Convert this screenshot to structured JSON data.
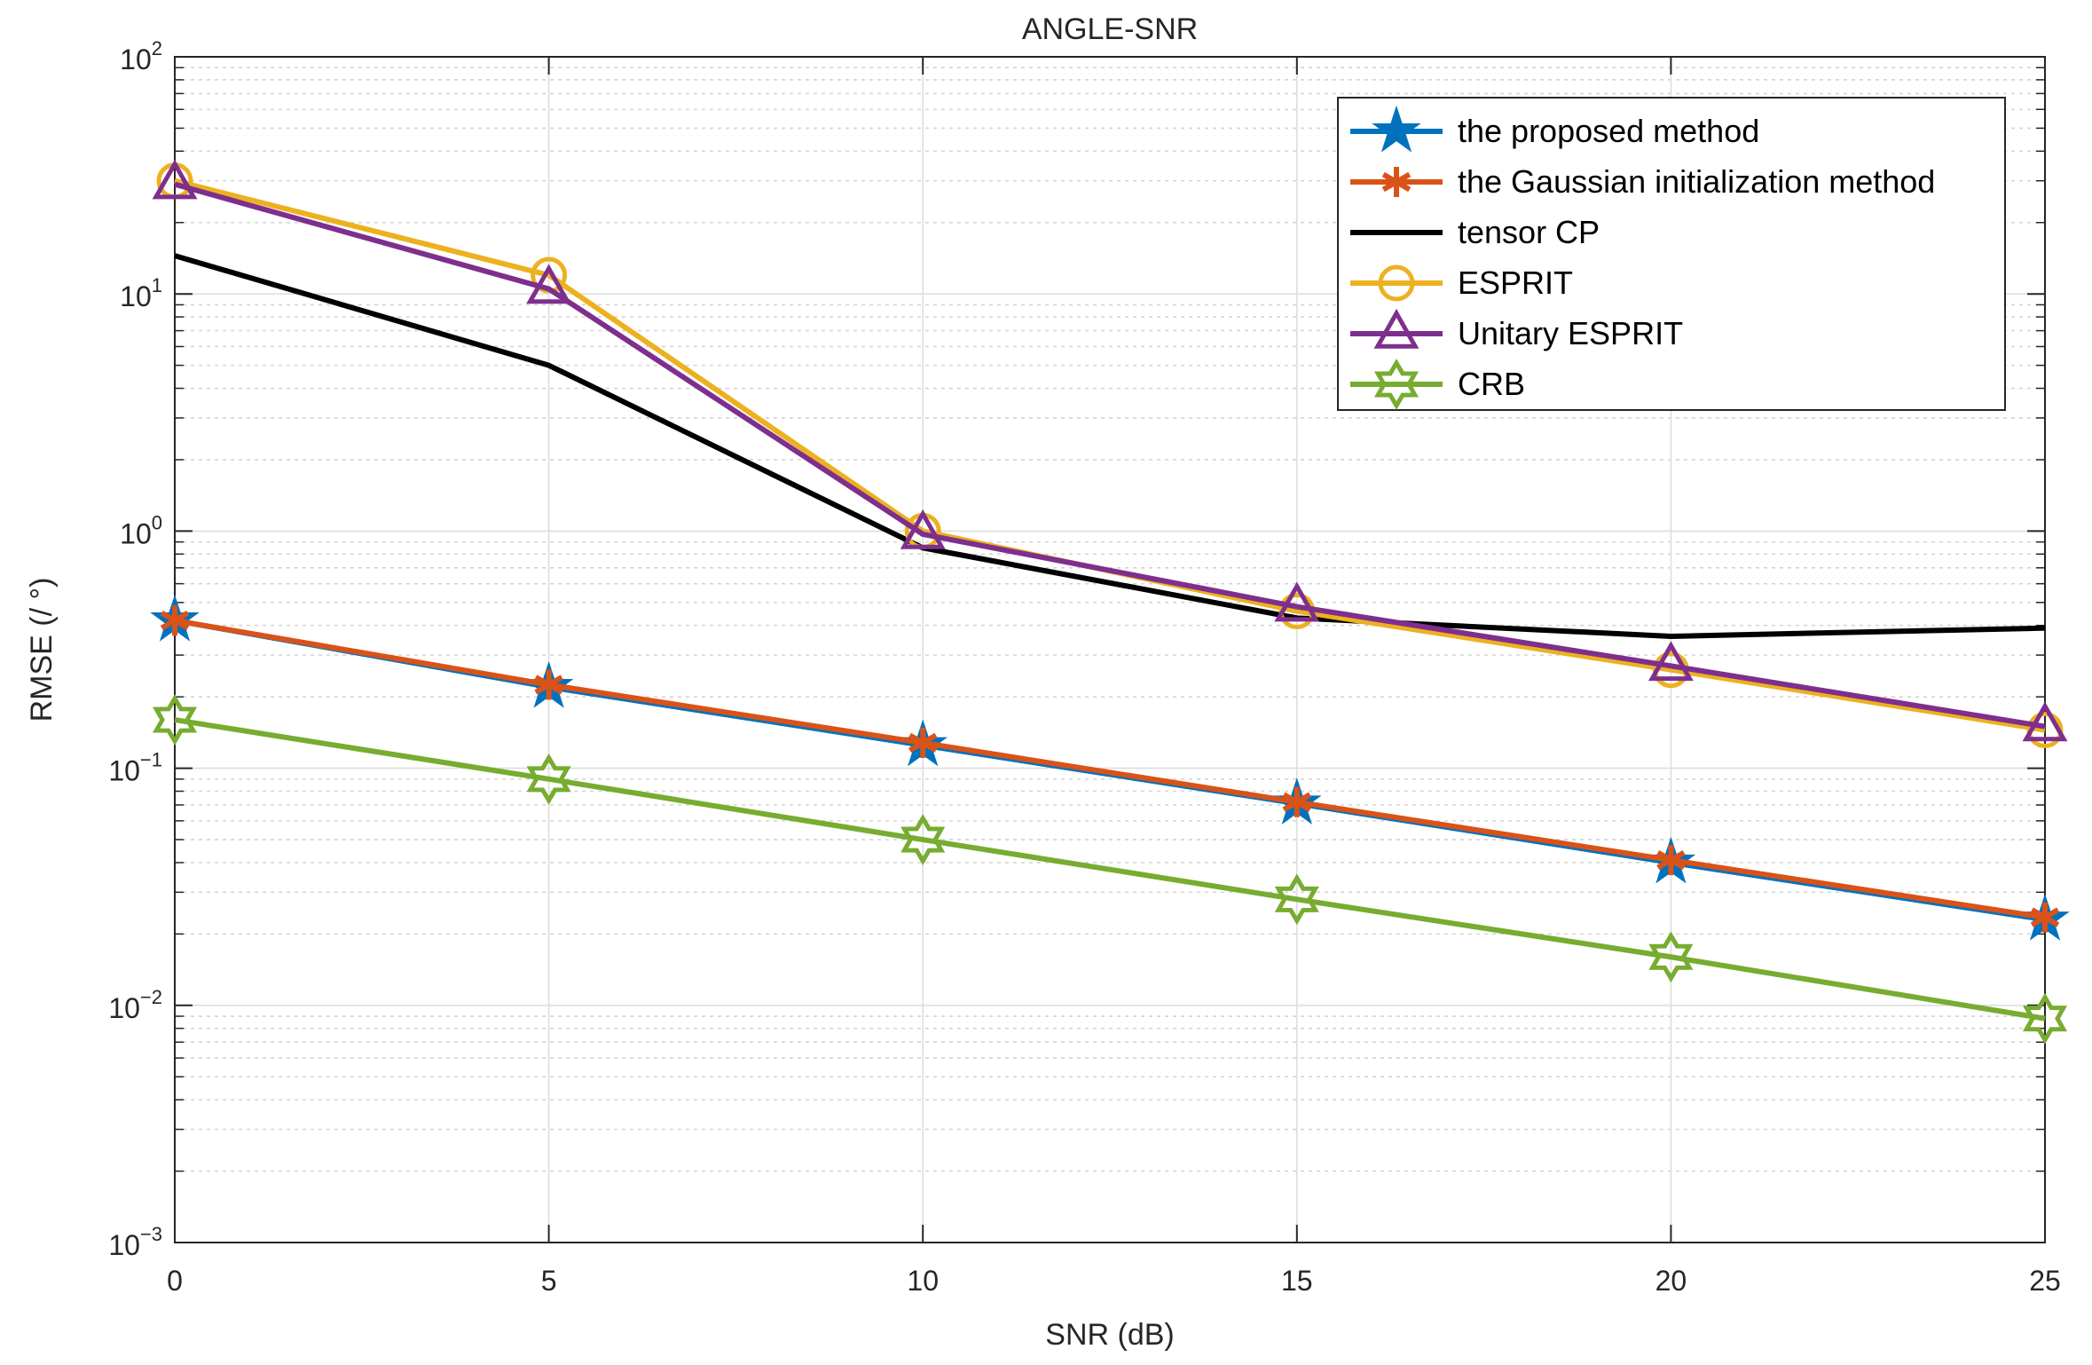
{
  "chart_data": {
    "type": "line",
    "title": "ANGLE-SNR",
    "xlabel": "SNR (dB)",
    "ylabel": "RMSE (/ °)",
    "yscale": "log",
    "xlim": [
      0,
      25
    ],
    "ylim": [
      0.001,
      100
    ],
    "grid": true,
    "legend_position": "top-right",
    "x": [
      0,
      5,
      10,
      15,
      20,
      25
    ],
    "x_ticks": [
      {
        "value": 0,
        "label": "0"
      },
      {
        "value": 5,
        "label": "5"
      },
      {
        "value": 10,
        "label": "10"
      },
      {
        "value": 15,
        "label": "15"
      },
      {
        "value": 20,
        "label": "20"
      },
      {
        "value": 25,
        "label": "25"
      }
    ],
    "y_ticks": [
      {
        "value": 100,
        "base": "10",
        "exp": "2"
      },
      {
        "value": 10,
        "base": "10",
        "exp": "1"
      },
      {
        "value": 1,
        "base": "10",
        "exp": "0"
      },
      {
        "value": 0.1,
        "base": "10",
        "exp": "−1"
      },
      {
        "value": 0.01,
        "base": "10",
        "exp": "−2"
      },
      {
        "value": 0.001,
        "base": "10",
        "exp": "−3"
      }
    ],
    "series": [
      {
        "name": "the proposed method",
        "color": "#0072BD",
        "marker": "pentagram",
        "values": [
          0.42,
          0.22,
          0.125,
          0.071,
          0.04,
          0.023
        ]
      },
      {
        "name": "the Gaussian initialization method",
        "color": "#D95319",
        "marker": "asterisk",
        "values": [
          0.42,
          0.225,
          0.128,
          0.072,
          0.041,
          0.0235
        ]
      },
      {
        "name": "tensor CP",
        "color": "#000000",
        "marker": "none",
        "values": [
          14.5,
          5.0,
          0.85,
          0.43,
          0.36,
          0.39
        ]
      },
      {
        "name": "ESPRIT",
        "color": "#EDB120",
        "marker": "circle",
        "values": [
          30,
          12,
          1.0,
          0.46,
          0.26,
          0.145
        ]
      },
      {
        "name": "Unitary ESPRIT",
        "color": "#7E2F8E",
        "marker": "triangle",
        "values": [
          29,
          10.5,
          0.97,
          0.48,
          0.27,
          0.15
        ]
      },
      {
        "name": "CRB",
        "color": "#77AC30",
        "marker": "hexagram",
        "values": [
          0.16,
          0.09,
          0.05,
          0.028,
          0.016,
          0.0088
        ]
      }
    ]
  }
}
